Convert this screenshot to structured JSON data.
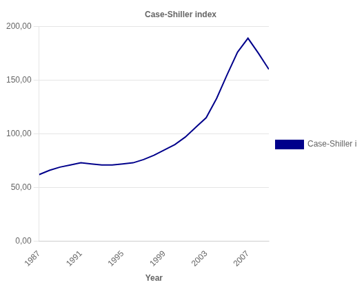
{
  "chart_data": {
    "type": "line",
    "title": "Case-Shiller index",
    "xlabel": "Year",
    "x": [
      1987,
      1988,
      1989,
      1990,
      1991,
      1992,
      1993,
      1994,
      1995,
      1996,
      1997,
      1998,
      1999,
      2000,
      2001,
      2002,
      2003,
      2004,
      2005,
      2006,
      2007,
      2008,
      2009
    ],
    "series": [
      {
        "name": "Case-Shiller\nindex",
        "color": "#00008B",
        "values": [
          62,
          66,
          69,
          71,
          73,
          72,
          71,
          71,
          72,
          73,
          76,
          80,
          85,
          90,
          97,
          106,
          115,
          133,
          155,
          176,
          189,
          175,
          160
        ]
      }
    ],
    "xlim": [
      1987,
      2009
    ],
    "xticks": [
      1987,
      1991,
      1995,
      1999,
      2003,
      2007
    ],
    "ylim": [
      0,
      200
    ],
    "yticks": [
      {
        "value": 0,
        "label": "0,00"
      },
      {
        "value": 50,
        "label": "50,00"
      },
      {
        "value": 100,
        "label": "100,00"
      },
      {
        "value": 150,
        "label": "150,00"
      },
      {
        "value": 200,
        "label": "200,00"
      }
    ],
    "grid": "y",
    "legend": "right"
  }
}
